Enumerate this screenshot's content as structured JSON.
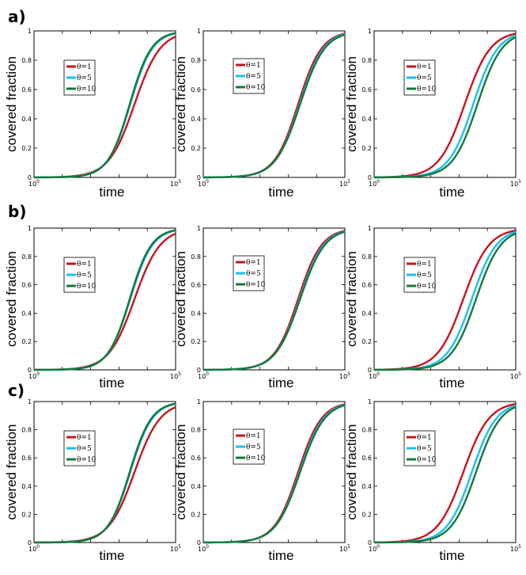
{
  "chart_data": {
    "type": "line",
    "x_scale": "log",
    "xlabel": "time",
    "ylabel": "covered fraction",
    "xlim": [
      1,
      100000
    ],
    "ylim": [
      0,
      1
    ],
    "x_ticks": [
      {
        "base": "10",
        "exp": "0"
      },
      {
        "base": "10",
        "exp": "5"
      }
    ],
    "y_ticks": [
      "0",
      "0.2",
      "0.4",
      "0.6",
      "0.8",
      "1"
    ],
    "series_styles": [
      {
        "name": "θ=1",
        "color": "#c8141e"
      },
      {
        "name": "θ=5",
        "color": "#19bff2"
      },
      {
        "name": "θ=10",
        "color": "#137a3a"
      }
    ],
    "rows": [
      {
        "label": "a)",
        "panels": [
          {
            "legend_position": "top-left",
            "series": [
              {
                "name": "θ=1",
                "midpoint_log10_time": 3.55,
                "steepness": 2.2
              },
              {
                "name": "θ=5",
                "midpoint_log10_time": 3.4,
                "steepness": 2.55
              },
              {
                "name": "θ=10",
                "midpoint_log10_time": 3.38,
                "steepness": 2.6
              }
            ]
          },
          {
            "legend_position": "top-left",
            "series": [
              {
                "name": "θ=1",
                "midpoint_log10_time": 3.35,
                "steepness": 2.4
              },
              {
                "name": "θ=5",
                "midpoint_log10_time": 3.4,
                "steepness": 2.35
              },
              {
                "name": "θ=10",
                "midpoint_log10_time": 3.42,
                "steepness": 2.3
              }
            ]
          },
          {
            "legend_position": "top-left",
            "series": [
              {
                "name": "θ=1",
                "midpoint_log10_time": 3.2,
                "steepness": 2.2
              },
              {
                "name": "θ=5",
                "midpoint_log10_time": 3.5,
                "steepness": 2.3
              },
              {
                "name": "θ=10",
                "midpoint_log10_time": 3.65,
                "steepness": 2.3
              }
            ]
          }
        ]
      },
      {
        "label": "b)",
        "panels": [
          {
            "legend_position": "top-left",
            "series": [
              {
                "name": "θ=1",
                "midpoint_log10_time": 3.55,
                "steepness": 2.2
              },
              {
                "name": "θ=5",
                "midpoint_log10_time": 3.4,
                "steepness": 2.55
              },
              {
                "name": "θ=10",
                "midpoint_log10_time": 3.38,
                "steepness": 2.6
              }
            ]
          },
          {
            "legend_position": "top-left",
            "series": [
              {
                "name": "θ=1",
                "midpoint_log10_time": 3.35,
                "steepness": 2.4
              },
              {
                "name": "θ=5",
                "midpoint_log10_time": 3.4,
                "steepness": 2.35
              },
              {
                "name": "θ=10",
                "midpoint_log10_time": 3.42,
                "steepness": 2.3
              }
            ]
          },
          {
            "legend_position": "top-left",
            "series": [
              {
                "name": "θ=1",
                "midpoint_log10_time": 3.15,
                "steepness": 2.2
              },
              {
                "name": "θ=5",
                "midpoint_log10_time": 3.45,
                "steepness": 2.3
              },
              {
                "name": "θ=10",
                "midpoint_log10_time": 3.6,
                "steepness": 2.3
              }
            ]
          }
        ]
      },
      {
        "label": "c)",
        "panels": [
          {
            "legend_position": "top-left",
            "series": [
              {
                "name": "θ=1",
                "midpoint_log10_time": 3.55,
                "steepness": 2.2
              },
              {
                "name": "θ=5",
                "midpoint_log10_time": 3.4,
                "steepness": 2.55
              },
              {
                "name": "θ=10",
                "midpoint_log10_time": 3.38,
                "steepness": 2.6
              }
            ]
          },
          {
            "legend_position": "top-left",
            "series": [
              {
                "name": "θ=1",
                "midpoint_log10_time": 3.35,
                "steepness": 2.4
              },
              {
                "name": "θ=5",
                "midpoint_log10_time": 3.4,
                "steepness": 2.35
              },
              {
                "name": "θ=10",
                "midpoint_log10_time": 3.42,
                "steepness": 2.3
              }
            ]
          },
          {
            "legend_position": "top-left",
            "series": [
              {
                "name": "θ=1",
                "midpoint_log10_time": 3.15,
                "steepness": 2.2
              },
              {
                "name": "θ=5",
                "midpoint_log10_time": 3.45,
                "steepness": 2.3
              },
              {
                "name": "θ=10",
                "midpoint_log10_time": 3.6,
                "steepness": 2.3
              }
            ]
          }
        ]
      }
    ]
  }
}
